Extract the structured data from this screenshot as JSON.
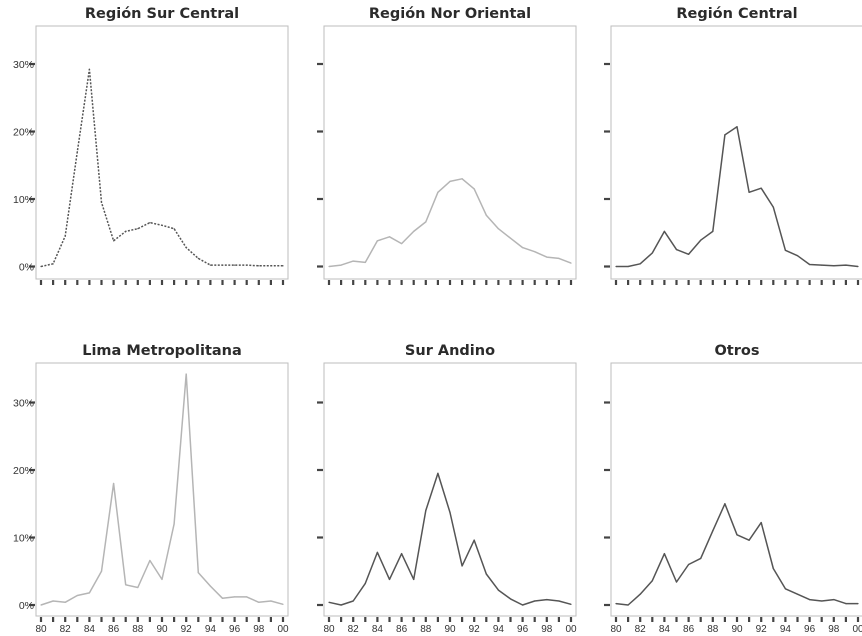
{
  "colors": {
    "frame": "#bdbdbd",
    "tick": "#444444"
  },
  "chart_data": [
    {
      "type": "line",
      "title": "Región Sur Central",
      "color": "#555555",
      "dashed": true,
      "x": [
        80,
        81,
        82,
        83,
        84,
        85,
        86,
        87,
        88,
        89,
        90,
        91,
        92,
        93,
        94,
        95,
        96,
        97,
        98,
        99,
        100
      ],
      "values": [
        0,
        0.4,
        4.5,
        17,
        29.2,
        9.5,
        3.8,
        5.2,
        5.6,
        6.5,
        6.1,
        5.6,
        2.8,
        1.2,
        0.2,
        0.2,
        0.2,
        0.2,
        0.1,
        0.1,
        0.1
      ],
      "ylim": [
        0,
        35
      ],
      "yticks": [
        "0%",
        "10%",
        "20%",
        "30%"
      ],
      "show_ytick_labels": true,
      "show_xtick_labels": false,
      "xticks": [
        "80",
        "82",
        "84",
        "86",
        "88",
        "90",
        "92",
        "94",
        "96",
        "98",
        "00"
      ]
    },
    {
      "type": "line",
      "title": "Región Nor Oriental",
      "color": "#b5b5b5",
      "dashed": false,
      "x": [
        80,
        81,
        82,
        83,
        84,
        85,
        86,
        87,
        88,
        89,
        90,
        91,
        92,
        93,
        94,
        95,
        96,
        97,
        98,
        99,
        100
      ],
      "values": [
        0,
        0.2,
        0.8,
        0.6,
        3.8,
        4.4,
        3.4,
        5.2,
        6.6,
        11,
        12.6,
        13,
        11.5,
        7.6,
        5.6,
        4.2,
        2.8,
        2.2,
        1.4,
        1.2,
        0.5
      ],
      "ylim": [
        0,
        35
      ],
      "yticks": [
        "0%",
        "10%",
        "20%",
        "30%"
      ],
      "show_ytick_labels": false,
      "show_xtick_labels": false,
      "xticks": [
        "80",
        "82",
        "84",
        "86",
        "88",
        "90",
        "92",
        "94",
        "96",
        "98",
        "00"
      ]
    },
    {
      "type": "line",
      "title": "Región Central",
      "color": "#555555",
      "dashed": false,
      "x": [
        80,
        81,
        82,
        83,
        84,
        85,
        86,
        87,
        88,
        89,
        90,
        91,
        92,
        93,
        94,
        95,
        96,
        97,
        98,
        99,
        100
      ],
      "values": [
        0,
        0,
        0.4,
        2,
        5.2,
        2.5,
        1.8,
        3.9,
        5.2,
        19.5,
        20.7,
        11,
        11.6,
        8.8,
        2.4,
        1.6,
        0.3,
        0.2,
        0.1,
        0.2,
        0
      ],
      "ylim": [
        0,
        35
      ],
      "yticks": [
        "0%",
        "10%",
        "20%",
        "30%"
      ],
      "show_ytick_labels": false,
      "show_xtick_labels": false,
      "xticks": [
        "80",
        "82",
        "84",
        "86",
        "88",
        "90",
        "92",
        "94",
        "96",
        "98",
        "00"
      ]
    },
    {
      "type": "line",
      "title": "Lima Metropolitana",
      "color": "#b5b5b5",
      "dashed": false,
      "x": [
        80,
        81,
        82,
        83,
        84,
        85,
        86,
        87,
        88,
        89,
        90,
        91,
        92,
        93,
        94,
        95,
        96,
        97,
        98,
        99,
        100
      ],
      "values": [
        0,
        0.6,
        0.4,
        1.4,
        1.8,
        5,
        18,
        3,
        2.6,
        6.6,
        3.8,
        12,
        34.2,
        4.8,
        2.8,
        1,
        1.2,
        1.2,
        0.4,
        0.6,
        0.1
      ],
      "ylim": [
        0,
        35
      ],
      "yticks": [
        "0%",
        "10%",
        "20%",
        "30%"
      ],
      "show_ytick_labels": true,
      "show_xtick_labels": true,
      "xticks": [
        "80",
        "82",
        "84",
        "86",
        "88",
        "90",
        "92",
        "94",
        "96",
        "98",
        "00"
      ]
    },
    {
      "type": "line",
      "title": "Sur Andino",
      "color": "#555555",
      "dashed": false,
      "x": [
        80,
        81,
        82,
        83,
        84,
        85,
        86,
        87,
        88,
        89,
        90,
        91,
        92,
        93,
        94,
        95,
        96,
        97,
        98,
        99,
        100
      ],
      "values": [
        0.4,
        0,
        0.6,
        3.2,
        7.8,
        3.8,
        7.6,
        3.8,
        14,
        19.5,
        13.7,
        5.8,
        9.6,
        4.6,
        2.2,
        0.9,
        0,
        0.6,
        0.8,
        0.6,
        0.1
      ],
      "ylim": [
        0,
        35
      ],
      "yticks": [
        "0%",
        "10%",
        "20%",
        "30%"
      ],
      "show_ytick_labels": false,
      "show_xtick_labels": true,
      "xticks": [
        "80",
        "82",
        "84",
        "86",
        "88",
        "90",
        "92",
        "94",
        "96",
        "98",
        "00"
      ]
    },
    {
      "type": "line",
      "title": "Otros",
      "color": "#555555",
      "dashed": false,
      "x": [
        80,
        81,
        82,
        83,
        84,
        85,
        86,
        87,
        88,
        89,
        90,
        91,
        92,
        93,
        94,
        95,
        96,
        97,
        98,
        99,
        100
      ],
      "values": [
        0.2,
        0,
        1.6,
        3.6,
        7.6,
        3.4,
        6,
        6.9,
        11,
        15,
        10.4,
        9.6,
        12.2,
        5.4,
        2.4,
        1.6,
        0.8,
        0.6,
        0.8,
        0.2,
        0.2
      ],
      "ylim": [
        0,
        35
      ],
      "yticks": [
        "0%",
        "10%",
        "20%",
        "30%"
      ],
      "show_ytick_labels": false,
      "show_xtick_labels": true,
      "xticks": [
        "80",
        "82",
        "84",
        "86",
        "88",
        "90",
        "92",
        "94",
        "96",
        "98",
        "00"
      ]
    }
  ]
}
